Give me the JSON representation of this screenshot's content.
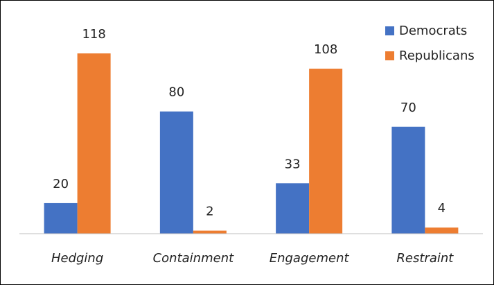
{
  "chart_data": {
    "type": "bar",
    "categories": [
      "Hedging",
      "Containment",
      "Engagement",
      "Restraint"
    ],
    "series": [
      {
        "name": "Democrats",
        "color": "#4472c4",
        "values": [
          20,
          80,
          33,
          70
        ]
      },
      {
        "name": "Republicans",
        "color": "#ed7d31",
        "values": [
          118,
          2,
          108,
          4
        ]
      }
    ],
    "legend": "top-right"
  }
}
